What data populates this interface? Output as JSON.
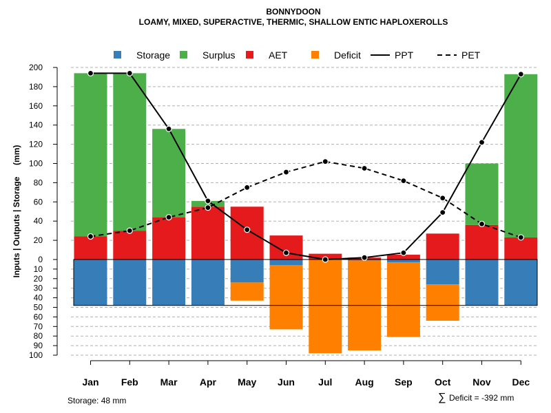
{
  "chart_data": {
    "type": "bar",
    "title": "BONNYDOON",
    "subtitle": "LOAMY, MIXED, SUPERACTIVE, THERMIC, SHALLOW ENTIC HAPLOXEROLLS",
    "ylabel": "Inputs | Outputs | Storage     (mm)",
    "categories": [
      "Jan",
      "Feb",
      "Mar",
      "Apr",
      "May",
      "Jun",
      "Jul",
      "Aug",
      "Sep",
      "Oct",
      "Nov",
      "Dec"
    ],
    "ylim_top": [
      0,
      200
    ],
    "ylim_bottom": [
      0,
      100
    ],
    "yticks_top": [
      "0",
      "20",
      "40",
      "60",
      "80",
      "100",
      "120",
      "140",
      "160",
      "180",
      "200"
    ],
    "yticks_bottom": [
      "0",
      "10",
      "20",
      "30",
      "40",
      "50",
      "60",
      "70",
      "80",
      "90",
      "100"
    ],
    "storage_capacity": 48,
    "legend": [
      {
        "label": "Storage",
        "kind": "box",
        "color": "#377eb8"
      },
      {
        "label": "Surplus",
        "kind": "box",
        "color": "#4daf4a"
      },
      {
        "label": "AET",
        "kind": "box",
        "color": "#e41a1c"
      },
      {
        "label": "Deficit",
        "kind": "box",
        "color": "#ff7f00"
      },
      {
        "label": "PPT",
        "kind": "solid-line",
        "color": "#000000"
      },
      {
        "label": "PET",
        "kind": "dashed-line",
        "color": "#000000"
      }
    ],
    "series": [
      {
        "name": "AET",
        "color": "#e41a1c",
        "values": [
          24,
          30,
          44,
          55,
          55,
          25,
          6,
          2,
          5,
          27,
          36,
          23
        ]
      },
      {
        "name": "Surplus",
        "color": "#4daf4a",
        "values": [
          170,
          164,
          92,
          6,
          0,
          0,
          0,
          0,
          0,
          0,
          64,
          170
        ]
      },
      {
        "name": "Storage",
        "color": "#377eb8",
        "values": [
          48,
          48,
          48,
          48,
          24,
          6,
          0,
          1,
          3,
          26,
          48,
          48
        ]
      },
      {
        "name": "Deficit",
        "color": "#ff7f00",
        "values": [
          0,
          0,
          0,
          0,
          19,
          67,
          98,
          94,
          78,
          38,
          0,
          0
        ]
      },
      {
        "name": "PPT",
        "color": "#000000",
        "values": [
          194,
          194,
          136,
          61,
          31,
          7,
          0,
          2,
          7,
          49,
          122,
          193
        ]
      },
      {
        "name": "PET",
        "color": "#000000",
        "values": [
          24,
          30,
          44,
          54,
          75,
          91,
          102,
          95,
          82,
          64,
          37,
          23
        ]
      }
    ]
  },
  "footer": {
    "storage_text": "Storage: 48 mm",
    "deficit_symbol": "∑",
    "deficit_text": "Deficit = -392 mm"
  }
}
